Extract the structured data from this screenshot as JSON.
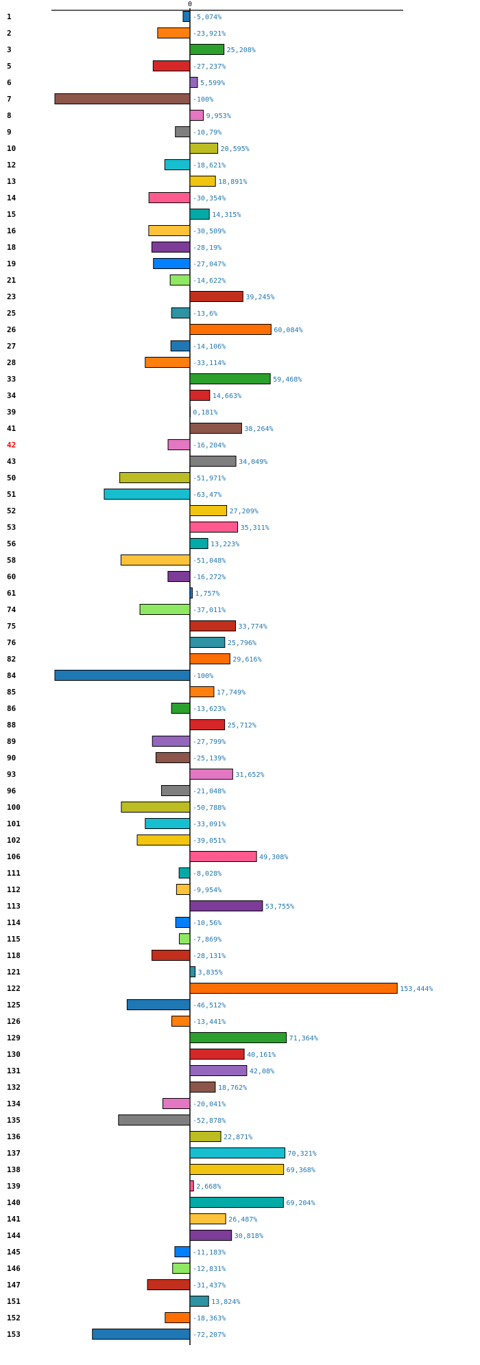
{
  "chart_data": {
    "type": "bar",
    "orientation": "horizontal",
    "title": "",
    "xlabel": "",
    "ylabel": "",
    "x_ticks": [
      "0"
    ],
    "value_suffix": "%",
    "decimal_separator": ",",
    "xlim": [
      -100,
      160
    ],
    "grid": false,
    "legend": "none",
    "highlighted_category": "42",
    "highlight_color": "#ff0000",
    "categories": [
      "1",
      "2",
      "3",
      "5",
      "6",
      "7",
      "8",
      "9",
      "10",
      "12",
      "13",
      "14",
      "15",
      "16",
      "18",
      "19",
      "21",
      "23",
      "25",
      "26",
      "27",
      "28",
      "33",
      "34",
      "39",
      "41",
      "42",
      "43",
      "50",
      "51",
      "52",
      "53",
      "56",
      "58",
      "60",
      "61",
      "74",
      "75",
      "76",
      "82",
      "84",
      "85",
      "86",
      "88",
      "89",
      "90",
      "93",
      "96",
      "100",
      "101",
      "102",
      "106",
      "111",
      "112",
      "113",
      "114",
      "115",
      "118",
      "121",
      "122",
      "125",
      "126",
      "129",
      "130",
      "131",
      "132",
      "134",
      "135",
      "136",
      "137",
      "138",
      "139",
      "140",
      "141",
      "144",
      "145",
      "146",
      "147",
      "151",
      "152",
      "153"
    ],
    "values": [
      -5.074,
      -23.921,
      25.208,
      -27.237,
      5.599,
      -100,
      9.953,
      -10.79,
      20.595,
      -18.621,
      18.891,
      -30.354,
      14.315,
      -30.509,
      -28.19,
      -27.047,
      -14.622,
      39.245,
      -13.6,
      60.084,
      -14.106,
      -33.114,
      59.468,
      14.663,
      0.181,
      38.264,
      -16.204,
      34.049,
      -51.971,
      -63.47,
      27.209,
      35.311,
      13.223,
      -51.048,
      -16.272,
      1.757,
      -37.011,
      33.774,
      25.796,
      29.616,
      -100,
      17.749,
      -13.623,
      25.712,
      -27.799,
      -25.139,
      31.652,
      -21.048,
      -50.788,
      -33.091,
      -39.051,
      49.308,
      -8.028,
      -9.954,
      53.755,
      -10.56,
      -7.869,
      -28.131,
      3.835,
      153.444,
      -46.512,
      -13.441,
      71.364,
      40.161,
      42.08,
      18.762,
      -20.041,
      -52.878,
      22.871,
      70.321,
      69.368,
      2.668,
      69.204,
      26.487,
      30.818,
      -11.183,
      -12.831,
      -31.437,
      13.824,
      -18.363,
      -72.207
    ],
    "value_labels": [
      "-5,074%",
      "-23,921%",
      "25,208%",
      "-27,237%",
      "5,599%",
      "-100%",
      "9,953%",
      "-10,79%",
      "20,595%",
      "-18,621%",
      "18,891%",
      "-30,354%",
      "14,315%",
      "-30,509%",
      "-28,19%",
      "-27,047%",
      "-14,622%",
      "39,245%",
      "-13,6%",
      "60,084%",
      "-14,106%",
      "-33,114%",
      "59,468%",
      "14,663%",
      "0,181%",
      "38,264%",
      "-16,204%",
      "34,049%",
      "-51,971%",
      "-63,47%",
      "27,209%",
      "35,311%",
      "13,223%",
      "-51,048%",
      "-16,272%",
      "1,757%",
      "-37,011%",
      "33,774%",
      "25,796%",
      "29,616%",
      "-100%",
      "17,749%",
      "-13,623%",
      "25,712%",
      "-27,799%",
      "-25,139%",
      "31,652%",
      "-21,048%",
      "-50,788%",
      "-33,091%",
      "-39,051%",
      "49,308%",
      "-8,028%",
      "-9,954%",
      "53,755%",
      "-10,56%",
      "-7,869%",
      "-28,131%",
      "3,835%",
      "153,444%",
      "-46,512%",
      "-13,441%",
      "71,364%",
      "40,161%",
      "42,08%",
      "18,762%",
      "-20,041%",
      "-52,878%",
      "22,871%",
      "70,321%",
      "69,368%",
      "2,668%",
      "69,204%",
      "26,487%",
      "30,818%",
      "-11,183%",
      "-12,831%",
      "-31,437%",
      "13,824%",
      "-18,363%",
      "-72,207%"
    ],
    "color_cycle": [
      "#1f77b4",
      "#ff7f0e",
      "#2ca02c",
      "#d62728",
      "#9467bd",
      "#8c564b",
      "#e377c2",
      "#7f7f7f",
      "#bcbd22",
      "#17becf",
      "#f1c40f",
      "#ff5a8f",
      "#00aaa6",
      "#fcc23a",
      "#7d3c98",
      "#0080ff",
      "#8fe862",
      "#c22f1c",
      "#2e93a3",
      "#ff6e00"
    ],
    "value_label_color": "#1f77b4"
  }
}
